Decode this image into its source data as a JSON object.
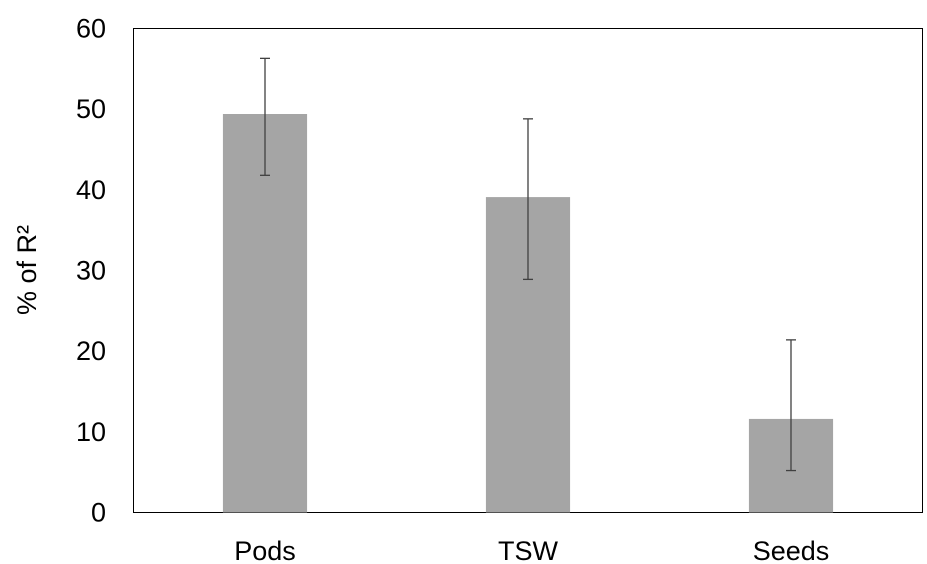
{
  "chart_data": {
    "type": "bar",
    "categories": [
      "Pods",
      "TSW",
      "Seeds"
    ],
    "values": [
      49.4,
      39.1,
      11.6
    ],
    "error_low": [
      41.8,
      28.9,
      5.2
    ],
    "error_high": [
      56.3,
      48.8,
      21.4
    ],
    "ylabel": "% of R²",
    "ylim": [
      0,
      60
    ],
    "yticks": [
      0,
      10,
      20,
      30,
      40,
      50,
      60
    ],
    "ytick_labels": [
      "0",
      "10",
      "20",
      "30",
      "40",
      "50",
      "60"
    ],
    "grid": false,
    "legend": "none",
    "bar_color": "#a5a5a5",
    "error_bar_color": "#404040",
    "frame_color": "#000000"
  }
}
